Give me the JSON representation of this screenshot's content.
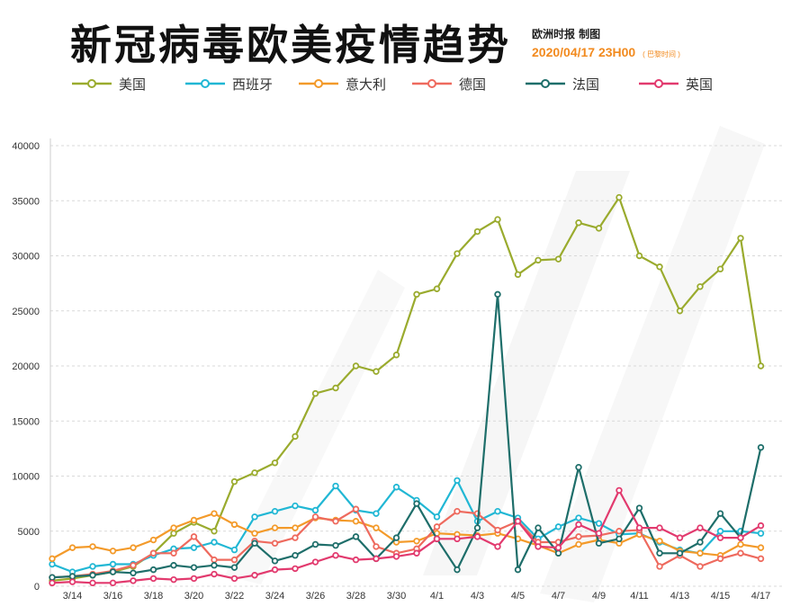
{
  "header": {
    "title": "新冠病毒欧美疫情趋势",
    "source": "欧洲时报 制图",
    "timestamp": "2020/04/17 23H00",
    "timestamp_note": "( 巴黎时间 )"
  },
  "chart_data": {
    "type": "line",
    "title": "新冠病毒欧美疫情趋势",
    "xlabel": "",
    "ylabel": "",
    "ylim": [
      0,
      40000
    ],
    "yticks": [
      0,
      5000,
      10000,
      15000,
      20000,
      25000,
      30000,
      35000,
      40000
    ],
    "x": [
      "3/13",
      "3/14",
      "3/15",
      "3/16",
      "3/17",
      "3/18",
      "3/19",
      "3/20",
      "3/21",
      "3/22",
      "3/23",
      "3/24",
      "3/25",
      "3/26",
      "3/27",
      "3/28",
      "3/29",
      "3/30",
      "3/31",
      "4/1",
      "4/2",
      "4/3",
      "4/4",
      "4/5",
      "4/6",
      "4/7",
      "4/8",
      "4/9",
      "4/10",
      "4/11",
      "4/12",
      "4/13",
      "4/14",
      "4/15",
      "4/16",
      "4/17"
    ],
    "xtick_labels": [
      "3/14",
      "3/16",
      "3/18",
      "3/20",
      "3/22",
      "3/24",
      "3/26",
      "3/28",
      "3/30",
      "4/1",
      "4/3",
      "4/5",
      "4/7",
      "4/9",
      "4/11",
      "4/13",
      "4/15",
      "4/17"
    ],
    "grid": "horizontal",
    "legend_position": "top",
    "series": [
      {
        "name": "美国",
        "color": "#9aab2e",
        "values": [
          500,
          700,
          1000,
          1300,
          1800,
          3000,
          4800,
          5800,
          5000,
          9500,
          10300,
          11200,
          13600,
          17500,
          18000,
          20000,
          19500,
          21000,
          26500,
          27000,
          30200,
          32200,
          33300,
          28300,
          29600,
          29700,
          33000,
          32500,
          35300,
          30000,
          29000,
          25000,
          27200,
          28800,
          31600,
          20000
        ]
      },
      {
        "name": "西班牙",
        "color": "#21b7d4",
        "values": [
          2000,
          1300,
          1800,
          2000,
          2000,
          2800,
          3400,
          3500,
          4000,
          3300,
          6300,
          6800,
          7300,
          6900,
          9100,
          6900,
          6600,
          9000,
          7800,
          6300,
          9600,
          5900,
          6800,
          6200,
          4300,
          5400,
          6200,
          5700,
          4700,
          4800,
          4000,
          3300,
          3000,
          5000,
          5000,
          4800
        ]
      },
      {
        "name": "意大利",
        "color": "#f39a2a",
        "values": [
          2500,
          3500,
          3600,
          3200,
          3500,
          4200,
          5300,
          6000,
          6600,
          5600,
          4800,
          5300,
          5300,
          6200,
          6000,
          5900,
          5300,
          4000,
          4100,
          4800,
          4700,
          4600,
          4800,
          4300,
          3700,
          3000,
          3800,
          4200,
          3900,
          4700,
          4100,
          3200,
          3000,
          2800,
          3800,
          3500
        ]
      },
      {
        "name": "德国",
        "color": "#ee6a5e",
        "values": [
          800,
          900,
          1100,
          1400,
          1900,
          3000,
          3000,
          4500,
          2400,
          2400,
          4100,
          3900,
          4400,
          6300,
          5900,
          7000,
          3600,
          3000,
          3400,
          5400,
          6800,
          6600,
          5100,
          5900,
          4000,
          4000,
          4500,
          4600,
          5000,
          5100,
          1800,
          2800,
          1800,
          2500,
          3000,
          2500
        ]
      },
      {
        "name": "法国",
        "color": "#1e6e6a",
        "values": [
          800,
          900,
          1000,
          1300,
          1200,
          1500,
          1900,
          1700,
          1900,
          1700,
          3900,
          2300,
          2800,
          3800,
          3700,
          4500,
          2500,
          4400,
          7500,
          4300,
          1500,
          5300,
          26500,
          1500,
          5300,
          3000,
          10800,
          3900,
          4300,
          7100,
          3000,
          3000,
          4000,
          6600,
          4400,
          12600
        ]
      },
      {
        "name": "英国",
        "color": "#e23a6e",
        "values": [
          300,
          400,
          300,
          300,
          500,
          700,
          600,
          700,
          1100,
          700,
          1000,
          1500,
          1600,
          2200,
          2800,
          2400,
          2500,
          2700,
          3000,
          4300,
          4300,
          4500,
          3600,
          5900,
          3600,
          3500,
          5600,
          4800,
          8700,
          5300,
          5300,
          4400,
          5300,
          4400,
          4400,
          5500
        ]
      }
    ]
  }
}
